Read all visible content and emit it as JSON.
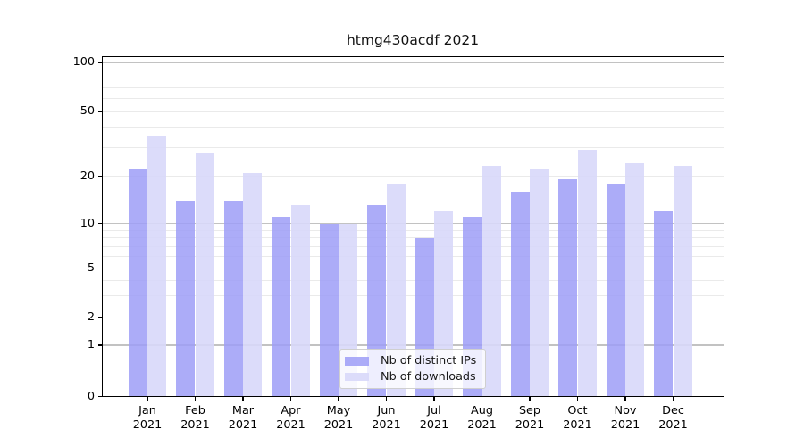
{
  "title": "htmg430acdf 2021",
  "legend": {
    "items": [
      {
        "label": "Nb of distinct IPs",
        "series_key": "distinct_ips"
      },
      {
        "label": "Nb of downloads",
        "series_key": "downloads"
      }
    ]
  },
  "x_axis": {
    "months": [
      "Jan",
      "Feb",
      "Mar",
      "Apr",
      "May",
      "Jun",
      "Jul",
      "Aug",
      "Sep",
      "Oct",
      "Nov",
      "Dec"
    ],
    "year": "2021"
  },
  "y_axis": {
    "tick_values": [
      100,
      50,
      20,
      10,
      5,
      2,
      1,
      0
    ],
    "emphasized_gridlines": [
      1,
      10,
      100
    ],
    "minor_gridlines": [
      2,
      3,
      4,
      5,
      6,
      7,
      8,
      9,
      20,
      30,
      40,
      50,
      60,
      70,
      80,
      90
    ]
  },
  "colors": {
    "distinct_ips_fill": "#9D9DF7D9",
    "downloads_fill": "#D8D8FAE6",
    "grid_major": "#c2c2c2",
    "grid_minor": "#eaeaea",
    "axis": "#000000",
    "background": "#ffffff",
    "text": "#000000"
  },
  "chart_data": {
    "type": "bar",
    "title": "htmg430acdf 2021",
    "categories": [
      "Jan 2021",
      "Feb 2021",
      "Mar 2021",
      "Apr 2021",
      "May 2021",
      "Jun 2021",
      "Jul 2021",
      "Aug 2021",
      "Sep 2021",
      "Oct 2021",
      "Nov 2021",
      "Dec 2021"
    ],
    "series": [
      {
        "name": "Nb of distinct IPs",
        "values": [
          22,
          14,
          14,
          11,
          10,
          13,
          8,
          11,
          16,
          19,
          18,
          12
        ]
      },
      {
        "name": "Nb of downloads",
        "values": [
          35,
          28,
          21,
          13,
          10,
          18,
          12,
          23,
          22,
          29,
          24,
          23
        ]
      }
    ],
    "yscale": "symlog",
    "yticks": [
      0,
      1,
      2,
      5,
      10,
      20,
      50,
      100
    ],
    "ylim": [
      0,
      110
    ],
    "grid": "both",
    "legend_position": "lower center"
  }
}
